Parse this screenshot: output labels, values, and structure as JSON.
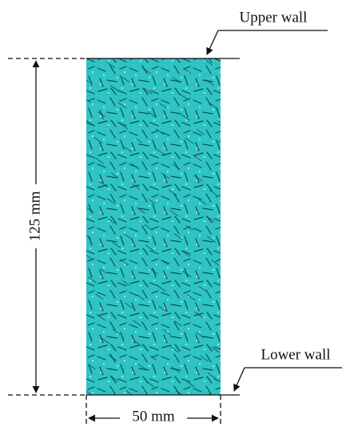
{
  "labels": {
    "upper_wall": "Upper wall",
    "lower_wall": "Lower wall",
    "height": "125 mm",
    "width": "50 mm"
  }
}
